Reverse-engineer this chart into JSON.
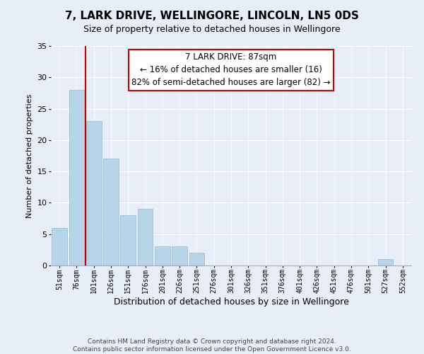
{
  "title": "7, LARK DRIVE, WELLINGORE, LINCOLN, LN5 0DS",
  "subtitle": "Size of property relative to detached houses in Wellingore",
  "xlabel": "Distribution of detached houses by size in Wellingore",
  "ylabel": "Number of detached properties",
  "bar_labels": [
    "51sqm",
    "76sqm",
    "101sqm",
    "126sqm",
    "151sqm",
    "176sqm",
    "201sqm",
    "226sqm",
    "251sqm",
    "276sqm",
    "301sqm",
    "326sqm",
    "351sqm",
    "376sqm",
    "401sqm",
    "426sqm",
    "451sqm",
    "476sqm",
    "501sqm",
    "527sqm",
    "552sqm"
  ],
  "bar_values": [
    6,
    28,
    23,
    17,
    8,
    9,
    3,
    3,
    2,
    0,
    0,
    0,
    0,
    0,
    0,
    0,
    0,
    0,
    0,
    1,
    0
  ],
  "bar_color": "#b8d4e8",
  "bar_edge_color": "#a0bfd8",
  "vline_x": 1.5,
  "vline_color": "#cc0000",
  "ylim": [
    0,
    35
  ],
  "yticks": [
    0,
    5,
    10,
    15,
    20,
    25,
    30,
    35
  ],
  "annotation_line1": "7 LARK DRIVE: 87sqm",
  "annotation_line2": "← 16% of detached houses are smaller (16)",
  "annotation_line3": "82% of semi-detached houses are larger (82) →",
  "footer_line1": "Contains HM Land Registry data © Crown copyright and database right 2024.",
  "footer_line2": "Contains public sector information licensed under the Open Government Licence v3.0.",
  "background_color": "#e8eef8",
  "plot_bg_color": "#e8eef8",
  "grid_color": "#ffffff",
  "title_fontsize": 11,
  "subtitle_fontsize": 9,
  "xlabel_fontsize": 9,
  "ylabel_fontsize": 8,
  "tick_fontsize": 7,
  "footer_fontsize": 6.5,
  "annotation_fontsize": 8.5
}
